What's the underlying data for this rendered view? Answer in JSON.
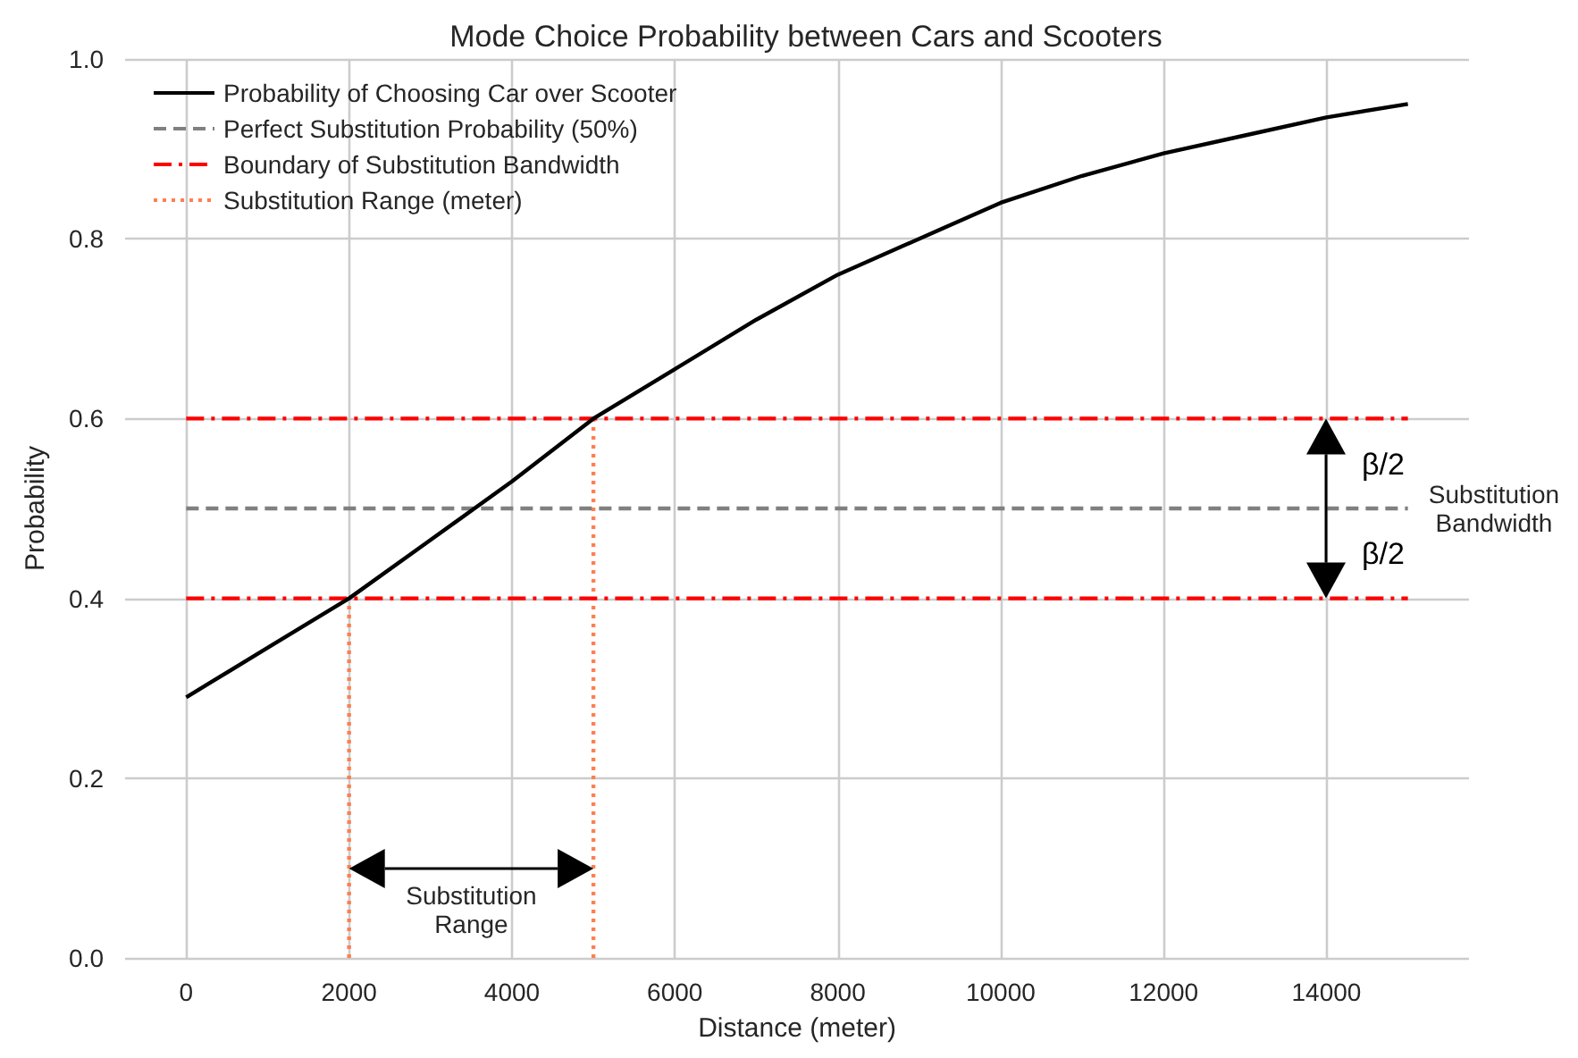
{
  "chart_data": {
    "type": "line",
    "title": "Mode Choice Probability between Cars and Scooters",
    "xlabel": "Distance (meter)",
    "ylabel": "Probability",
    "series": [
      {
        "name": "Probability of Choosing Car over Scooter",
        "color": "#000000",
        "line_style": "solid",
        "x": [
          0,
          1000,
          2000,
          3000,
          4000,
          5000,
          6000,
          7000,
          8000,
          9000,
          10000,
          11000,
          12000,
          13000,
          14000,
          15000
        ],
        "values": [
          0.29,
          0.345,
          0.4,
          0.465,
          0.53,
          0.6,
          0.655,
          0.71,
          0.76,
          0.8,
          0.84,
          0.87,
          0.895,
          0.915,
          0.935,
          0.95
        ]
      },
      {
        "name": "Perfect Substitution Probability (50%)",
        "color": "#808080",
        "line_style": "dashed",
        "x": [
          0,
          15000
        ],
        "values": [
          0.5,
          0.5
        ]
      },
      {
        "name": "Boundary of Substitution Bandwidth",
        "color": "#ff0000",
        "line_style": "dashdot",
        "x": [
          0,
          15000
        ],
        "values": [
          0.6,
          0.6
        ]
      },
      {
        "color": "#ff0000",
        "line_style": "dashdot",
        "x": [
          0,
          15000
        ],
        "values": [
          0.4,
          0.4
        ]
      },
      {
        "name": "Substitution Range (meter)",
        "color": "#ff7f50",
        "line_style": "dotted",
        "x": [
          2000,
          2000
        ],
        "values": [
          0,
          0.4
        ]
      },
      {
        "color": "#ff7f50",
        "line_style": "dotted",
        "x": [
          5000,
          5000
        ],
        "values": [
          0,
          0.6
        ]
      }
    ],
    "annotations": [
      "Substitution Range",
      "β/2",
      "β/2",
      "Substitution Bandwidth"
    ],
    "xlim": [
      -750,
      15750
    ],
    "xticks": [
      0,
      2000,
      4000,
      6000,
      8000,
      10000,
      12000,
      14000
    ],
    "ylim": [
      0,
      1
    ],
    "yticks": [
      {
        "value": 0,
        "label": "0.0"
      },
      0.2,
      0.4,
      0.6,
      0.8,
      {
        "value": 1,
        "label": "1.0"
      }
    ],
    "grid": true,
    "legend": "top left",
    "marker": "none"
  }
}
